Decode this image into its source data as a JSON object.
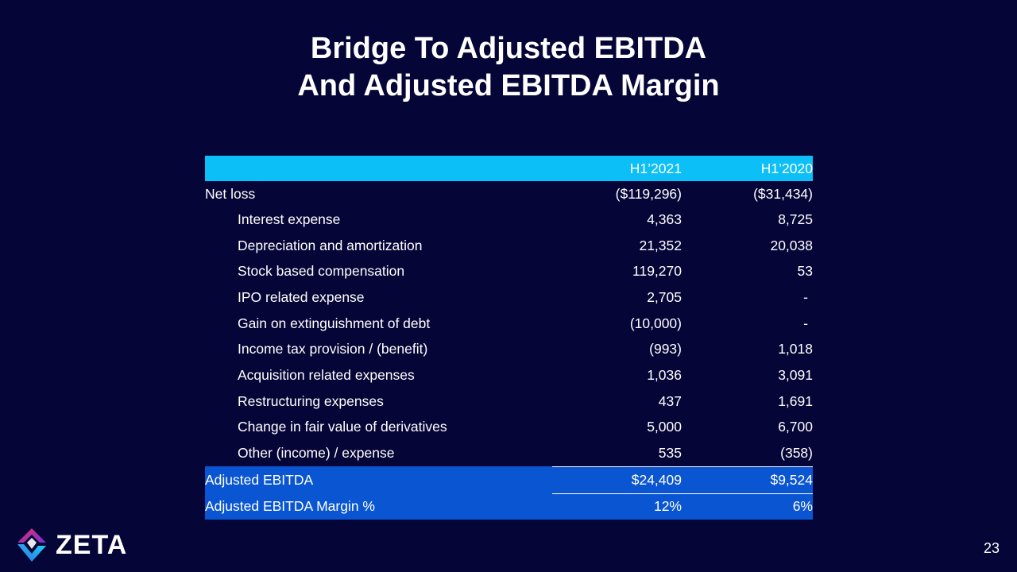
{
  "title": {
    "line1": "Bridge To Adjusted EBITDA",
    "line2": "And Adjusted EBITDA Margin"
  },
  "table": {
    "headers": [
      "",
      "H1’2021",
      "H1’2020"
    ],
    "rows": [
      {
        "label": "Net loss",
        "h1_2021": "($119,296)",
        "h1_2020": "($31,434)"
      },
      {
        "label": "Interest expense",
        "h1_2021": "4,363",
        "h1_2020": "8,725"
      },
      {
        "label": "Depreciation and amortization",
        "h1_2021": "21,352",
        "h1_2020": "20,038"
      },
      {
        "label": "Stock based compensation",
        "h1_2021": "119,270",
        "h1_2020": "53"
      },
      {
        "label": "IPO related expense",
        "h1_2021": "2,705",
        "h1_2020": "-"
      },
      {
        "label": "Gain on extinguishment of debt",
        "h1_2021": "(10,000)",
        "h1_2020": "-"
      },
      {
        "label": "Income tax provision / (benefit)",
        "h1_2021": "(993)",
        "h1_2020": "1,018"
      },
      {
        "label": "Acquisition related expenses",
        "h1_2021": "1,036",
        "h1_2020": "3,091"
      },
      {
        "label": "Restructuring expenses",
        "h1_2021": "437",
        "h1_2020": "1,691"
      },
      {
        "label": "Change in fair value of derivatives",
        "h1_2021": "5,000",
        "h1_2020": "6,700"
      },
      {
        "label": "Other (income) / expense",
        "h1_2021": "535",
        "h1_2020": "(358)"
      }
    ],
    "totals": [
      {
        "label": "Adjusted EBITDA",
        "h1_2021": "$24,409",
        "h1_2020": "$9,524"
      },
      {
        "label": "Adjusted EBITDA Margin %",
        "h1_2021": "12%",
        "h1_2020": "6%"
      }
    ]
  },
  "logo": {
    "text": "ZETA",
    "icon": "zeta-diamond-icon"
  },
  "page_number": "23",
  "colors": {
    "background": "#050537",
    "header_fill": "#0dbff7",
    "total_fill": "#0a56d2",
    "text": "#ffffff"
  }
}
